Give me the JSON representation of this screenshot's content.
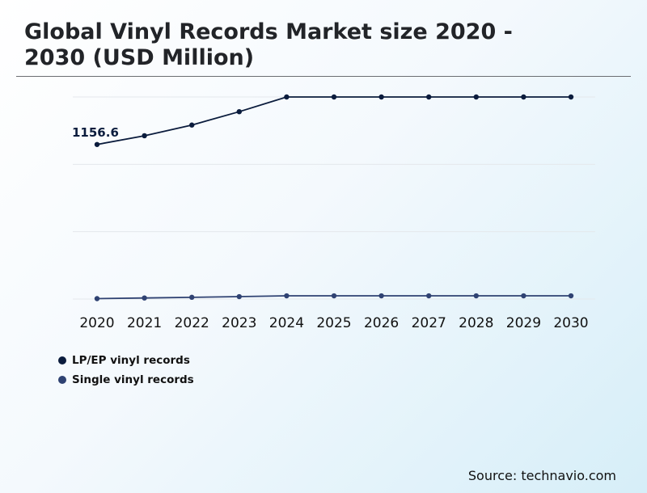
{
  "header": {
    "title": "Global Vinyl Records Market size 2020 - 2030 (USD Million)"
  },
  "source": "Source: technavio.com",
  "colors": {
    "lp_ep": "#0b1c3d",
    "single": "#2f4272",
    "grid": "#e4e8ec",
    "title_rule": "#6b6e72"
  },
  "chart_data": {
    "type": "line",
    "title": "Global Vinyl Records Market size 2020 - 2030 (USD Million)",
    "x": [
      "2020",
      "2021",
      "2022",
      "2023",
      "2024",
      "2025",
      "2026",
      "2027",
      "2028",
      "2029",
      "2030"
    ],
    "series": [
      {
        "name": "LP/EP vinyl records",
        "color": "#0b1c3d",
        "values": [
          1156.6,
          1222,
          1302,
          1402,
          1512,
          1512,
          1512,
          1512,
          1512,
          1512,
          1512
        ]
      },
      {
        "name": "Single vinyl records",
        "color": "#2f4272",
        "values": [
          3,
          8,
          13,
          18,
          24,
          24,
          24,
          24,
          24,
          24,
          24
        ]
      }
    ],
    "annotations": [
      {
        "series": 0,
        "index": 0,
        "label": "1156.6"
      }
    ],
    "ylim": [
      0,
      1512
    ],
    "grid": true,
    "legend_position": "bottom-left",
    "xlabel": "",
    "ylabel": ""
  }
}
